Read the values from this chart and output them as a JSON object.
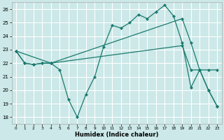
{
  "xlabel": "Humidex (Indice chaleur)",
  "background_color": "#cce8e8",
  "grid_color": "#ffffff",
  "line_color": "#1a7a6e",
  "xlim": [
    -0.5,
    23.5
  ],
  "ylim": [
    17.5,
    26.5
  ],
  "yticks": [
    18,
    19,
    20,
    21,
    22,
    23,
    24,
    25,
    26
  ],
  "xticks": [
    0,
    1,
    2,
    3,
    4,
    5,
    6,
    7,
    8,
    9,
    10,
    11,
    12,
    13,
    14,
    15,
    16,
    17,
    18,
    19,
    20,
    21,
    22,
    23
  ],
  "series": [
    {
      "x": [
        0,
        1,
        2,
        3,
        4,
        5,
        6,
        7,
        8,
        9,
        10,
        11,
        12,
        13,
        14,
        15,
        16,
        17,
        18,
        19,
        20,
        21,
        22,
        23
      ],
      "y": [
        22.9,
        22.0,
        21.9,
        22.0,
        22.0,
        21.5,
        19.3,
        18.0,
        19.7,
        21.0,
        23.2,
        24.8,
        24.6,
        25.0,
        25.6,
        25.3,
        25.8,
        26.3,
        25.5,
        23.5,
        20.2,
        21.5,
        20.0,
        18.8
      ]
    },
    {
      "x": [
        0,
        1,
        2,
        3,
        4,
        19,
        20,
        21,
        22,
        23
      ],
      "y": [
        22.9,
        22.0,
        21.9,
        22.0,
        22.0,
        25.3,
        23.5,
        21.5,
        20.0,
        18.8
      ]
    },
    {
      "x": [
        0,
        4,
        19,
        20,
        21,
        22,
        23
      ],
      "y": [
        22.9,
        22.0,
        23.3,
        21.5,
        21.5,
        21.5,
        21.5
      ]
    }
  ]
}
